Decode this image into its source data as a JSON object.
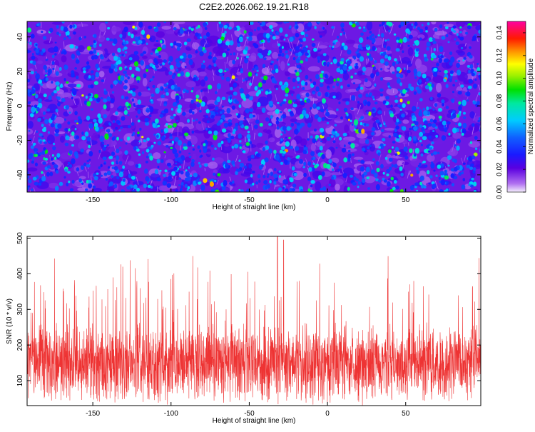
{
  "chart_data": [
    {
      "type": "heatmap",
      "title": "C2E2.2026.062.19.21.R18",
      "xlabel": "Height of straight line (km)",
      "ylabel": "Frequency (Hz)",
      "xlim": [
        -192,
        98
      ],
      "ylim": [
        -50,
        49
      ],
      "xticks": [
        -150,
        -100,
        -50,
        0,
        50
      ],
      "xtick_labels": [
        "-150",
        "-100",
        "-50",
        "0",
        "50"
      ],
      "yticks": [
        -40,
        -20,
        0,
        20,
        40
      ],
      "ytick_labels": [
        "-40",
        "-20",
        "0",
        "20",
        "40"
      ],
      "grid": false,
      "colorbar": {
        "label": "Normalized spectral amplitude",
        "range": [
          0.0,
          0.15
        ],
        "ticks": [
          0.0,
          0.02,
          0.04,
          0.06,
          0.08,
          0.1,
          0.12,
          0.14
        ],
        "tick_labels": [
          "0.00",
          "0.02",
          "0.04",
          "0.06",
          "0.08",
          "0.10",
          "0.12",
          "0.14"
        ],
        "colormap": "rainbow: white-lavender → purple → blue → cyan → green → yellow → orange → red → magenta"
      },
      "field_description": "Dense speckle of small blobs; background amplitude ~0.01–0.03 (blue), frequent blobs ~0.04–0.06 (cyan/green), occasional peaks ~0.09–0.12 (yellow/orange/red), purple streaks near 0.005"
    },
    {
      "type": "line",
      "title": "",
      "xlabel": "Height of straight line (km)",
      "ylabel": "SNR (10 * v/v)",
      "xlim": [
        -192,
        98
      ],
      "ylim": [
        30,
        505
      ],
      "xticks": [
        -150,
        -100,
        -50,
        0,
        50
      ],
      "xtick_labels": [
        "-150",
        "-100",
        "-50",
        "0",
        "50"
      ],
      "yticks": [
        100,
        200,
        300,
        400,
        500
      ],
      "ytick_labels": [
        "100",
        "200",
        "300",
        "400",
        "500"
      ],
      "grid": false,
      "series": [
        {
          "name": "SNR",
          "color": "#ee3333",
          "description": "Dense noisy trace; band mostly between ~60 and ~320, spikes up to ~440, max spike ~505 near x=-32 and ~495 near x=-28"
        }
      ]
    }
  ]
}
